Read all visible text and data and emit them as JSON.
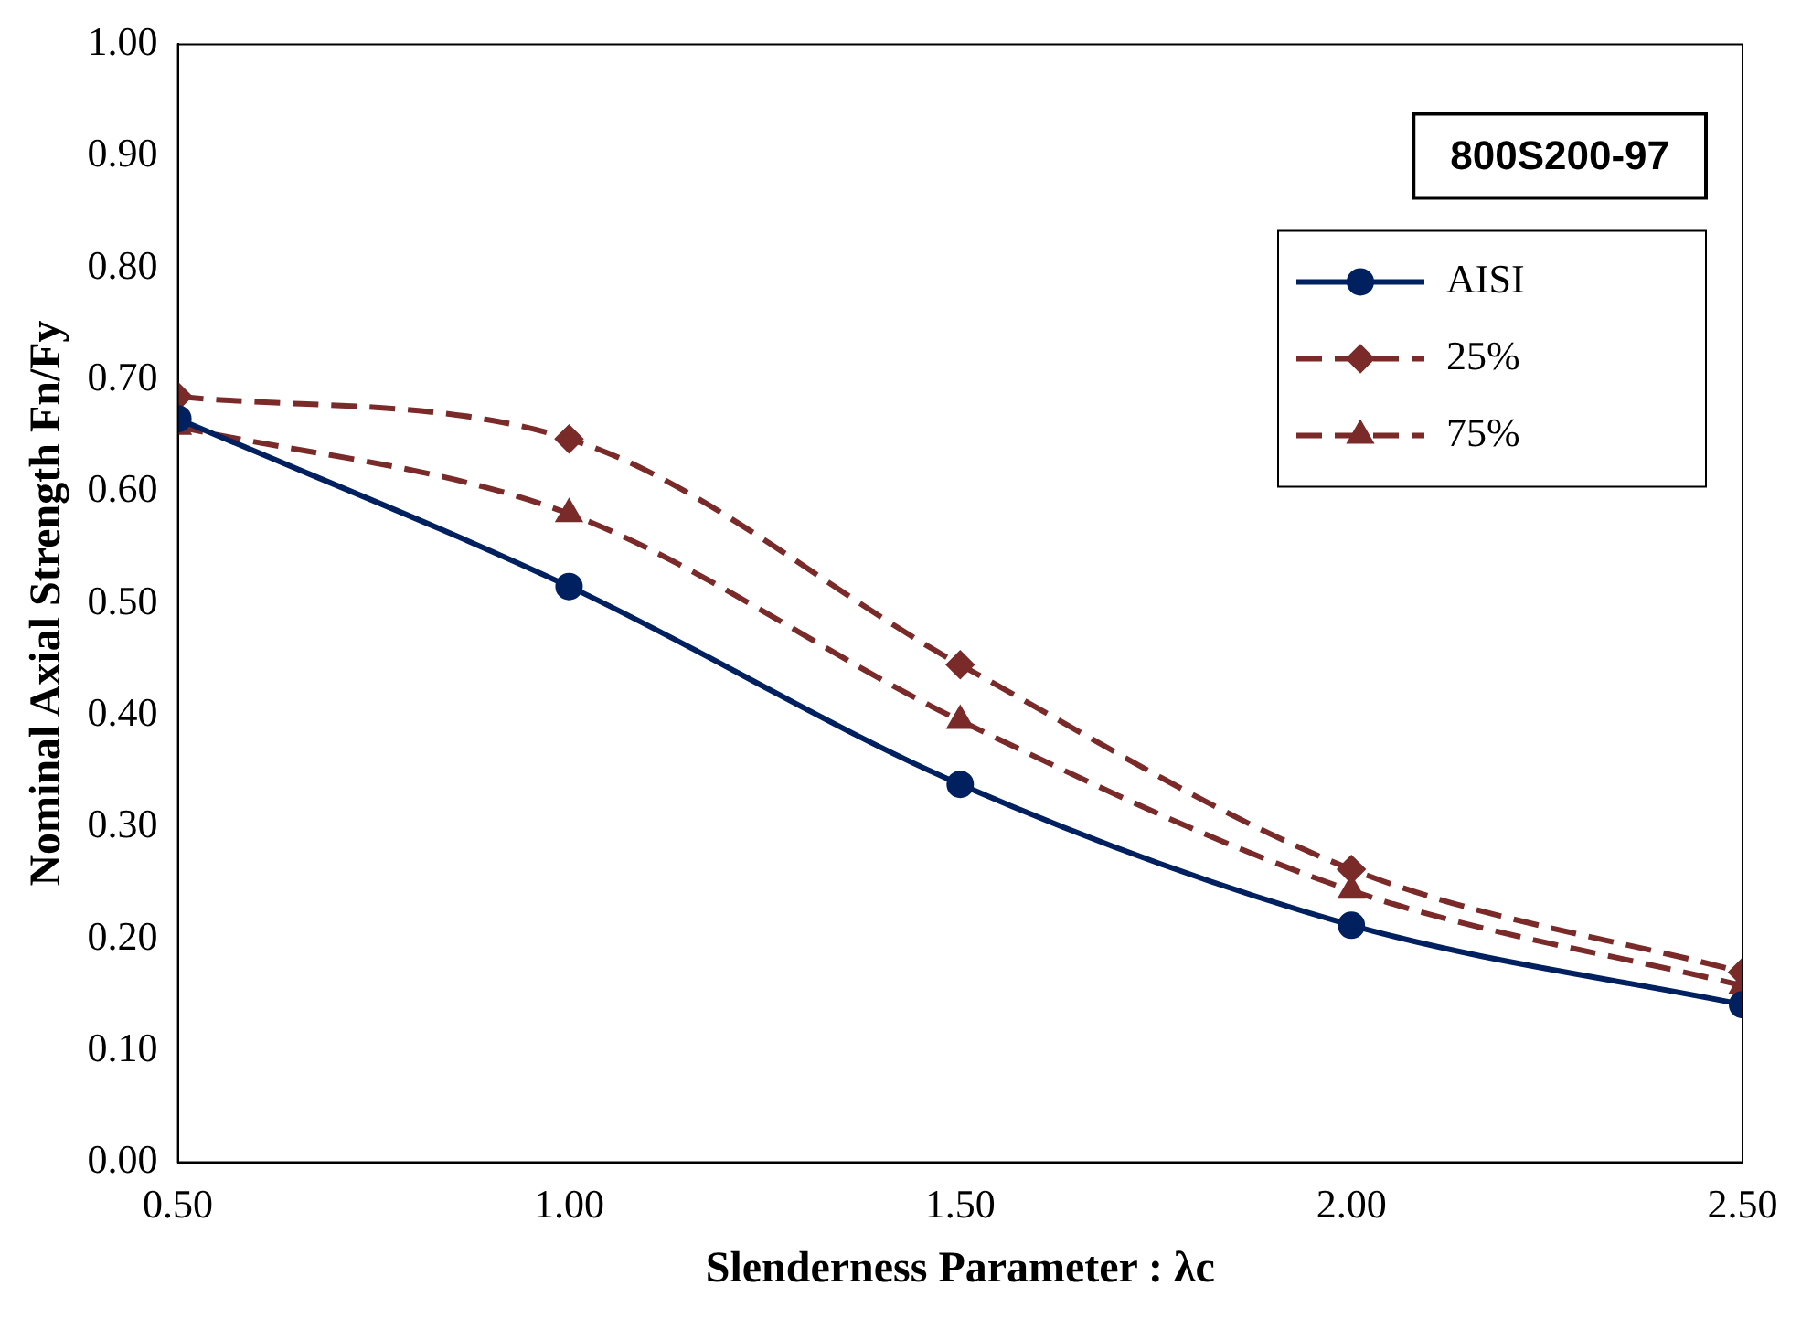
{
  "chart_data": {
    "type": "line",
    "xlabel": "Slenderness Parameter : λc",
    "ylabel": "Nominal Axial Strength Fn/Fy",
    "x": [
      0.5,
      1.0,
      1.5,
      2.0,
      2.5
    ],
    "series": [
      {
        "name": "AISI",
        "color": "#002060",
        "values": [
          0.665,
          0.515,
          0.338,
          0.212,
          0.141
        ],
        "marker": "circle",
        "line_style": "solid"
      },
      {
        "name": "25%",
        "color": "#7b2a2a",
        "values": [
          0.685,
          0.647,
          0.445,
          0.262,
          0.17
        ],
        "marker": "diamond",
        "line_style": "dashed"
      },
      {
        "name": "75%",
        "color": "#7b2a2a",
        "values": [
          0.658,
          0.58,
          0.395,
          0.243,
          0.158
        ],
        "marker": "triangle",
        "line_style": "dashed"
      }
    ],
    "xlim": [
      0.5,
      2.5
    ],
    "xticks": [
      {
        "value": 0.5,
        "label": "0.50"
      },
      {
        "value": 1.0,
        "label": "1.00"
      },
      {
        "value": 1.5,
        "label": "1.50"
      },
      {
        "value": 2.0,
        "label": "2.00"
      },
      {
        "value": 2.5,
        "label": "2.50"
      }
    ],
    "ylim": [
      0,
      1
    ],
    "yticks": [
      {
        "value": 0,
        "label": "0.00"
      },
      {
        "value": 0.1,
        "label": "0.10"
      },
      {
        "value": 0.2,
        "label": "0.20"
      },
      {
        "value": 0.3,
        "label": "0.30"
      },
      {
        "value": 0.4,
        "label": "0.40"
      },
      {
        "value": 0.5,
        "label": "0.50"
      },
      {
        "value": 0.6,
        "label": "0.60"
      },
      {
        "value": 0.7,
        "label": "0.70"
      },
      {
        "value": 0.8,
        "label": "0.80"
      },
      {
        "value": 0.9,
        "label": "0.90"
      },
      {
        "value": 1.0,
        "label": "1.00"
      }
    ],
    "grid": false,
    "legend": "top right",
    "annotations": [
      "800S200-97"
    ]
  }
}
